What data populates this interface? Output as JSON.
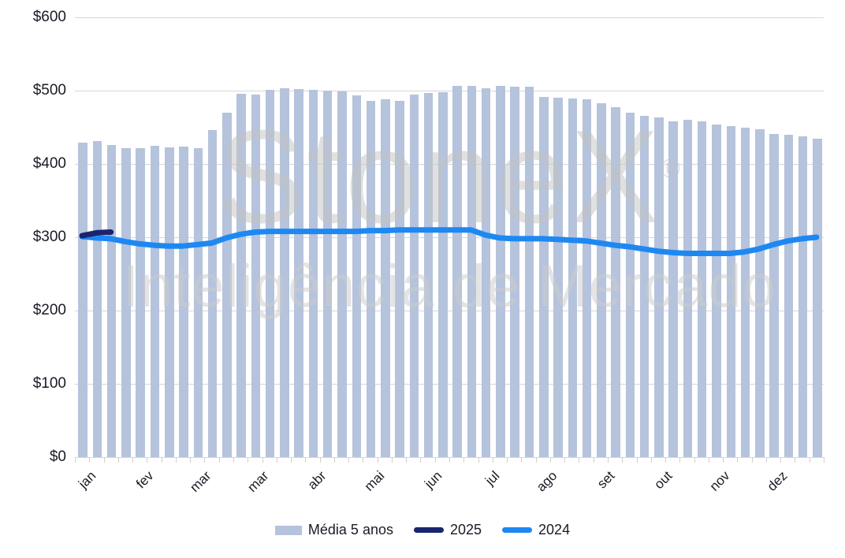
{
  "watermark": {
    "line1": "StoneX",
    "registered": "®",
    "line2": "Inteligência de Mercado"
  },
  "colors": {
    "bar": "#b5c3dc",
    "line_2025": "#1a2570",
    "line_2024": "#1e88f2",
    "grid": "#d6d6d6",
    "axis_text": "#1a1a26"
  },
  "legend": {
    "items": [
      {
        "label": "Média 5 anos",
        "type": "bar",
        "color": "#b5c3dc"
      },
      {
        "label": "2025",
        "type": "line",
        "color": "#1a2570"
      },
      {
        "label": "2024",
        "type": "line",
        "color": "#1e88f2"
      }
    ]
  },
  "chart_data": {
    "type": "bar",
    "x_unit": "week-of-year",
    "n_weeks": 52,
    "ylim": [
      0,
      600
    ],
    "y_tick_labels": [
      "$0",
      "$100",
      "$200",
      "$300",
      "$400",
      "$500",
      "$600"
    ],
    "y_tick_values": [
      0,
      100,
      200,
      300,
      400,
      500,
      600
    ],
    "month_labels": [
      "jan",
      "fev",
      "mar",
      "mar",
      "abr",
      "mai",
      "jun",
      "jul",
      "ago",
      "set",
      "out",
      "nov",
      "dez"
    ],
    "month_label_weeks": [
      1,
      5,
      9,
      13,
      17,
      21,
      25,
      29,
      33,
      37,
      41,
      45,
      49
    ],
    "grid": "horizontal",
    "legend_position": "bottom-center",
    "series": [
      {
        "name": "Média 5 anos",
        "type": "bar",
        "color": "#b5c3dc",
        "start_week": 1,
        "values": [
          429,
          431,
          426,
          422,
          421,
          425,
          423,
          424,
          421,
          446,
          470,
          496,
          495,
          501,
          503,
          502,
          501,
          500,
          499,
          494,
          486,
          488,
          486,
          495,
          497,
          498,
          506,
          507,
          503,
          506,
          505,
          505,
          491,
          490,
          489,
          488,
          483,
          477,
          470,
          466,
          463,
          458,
          460,
          458,
          454,
          452,
          449,
          447,
          441,
          440,
          438,
          434
        ]
      },
      {
        "name": "2025",
        "type": "line",
        "color": "#1a2570",
        "start_week": 1,
        "values": [
          302,
          306,
          307
        ]
      },
      {
        "name": "2024",
        "type": "line",
        "color": "#1e88f2",
        "start_week": 1,
        "values": [
          301,
          299,
          298,
          294,
          291,
          289,
          288,
          288,
          290,
          292,
          299,
          304,
          307,
          308,
          308,
          308,
          308,
          308,
          308,
          308,
          309,
          309,
          310,
          310,
          310,
          310,
          310,
          310,
          303,
          299,
          298,
          298,
          298,
          297,
          296,
          295,
          292,
          289,
          287,
          284,
          281,
          279,
          278,
          278,
          278,
          278,
          280,
          284,
          290,
          295,
          298,
          300
        ]
      }
    ]
  }
}
